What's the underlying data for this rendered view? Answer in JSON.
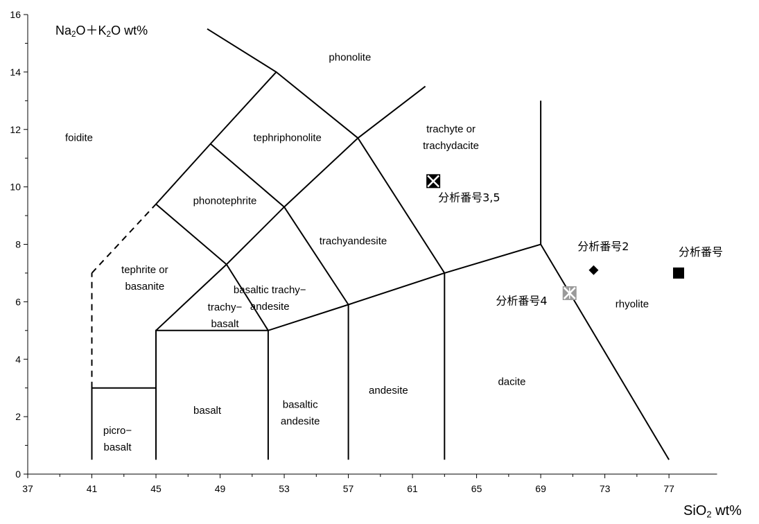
{
  "chart_data": {
    "type": "scatter",
    "title": "",
    "xaxis": {
      "label_main": "SiO",
      "label_sub": "2",
      "label_tail": " wt%",
      "range": [
        37,
        80
      ],
      "ticks": [
        37,
        41,
        45,
        49,
        53,
        57,
        61,
        65,
        69,
        73,
        77
      ]
    },
    "yaxis": {
      "label_parts": [
        "Na",
        "2",
        "O＋K",
        "2",
        "O wt%"
      ],
      "range": [
        0,
        16
      ],
      "ticks": [
        0,
        2,
        4,
        6,
        8,
        10,
        12,
        14,
        16
      ]
    },
    "grid": false,
    "boundaries": [
      {
        "points": [
          [
            41,
            0.5
          ],
          [
            41,
            3
          ],
          [
            45,
            3
          ],
          [
            45,
            5
          ],
          [
            52,
            5
          ],
          [
            57,
            5.9
          ],
          [
            63,
            7
          ],
          [
            69,
            8
          ],
          [
            77,
            0.5
          ]
        ]
      },
      {
        "points": [
          [
            45,
            0.5
          ],
          [
            45,
            3
          ]
        ]
      },
      {
        "points": [
          [
            52,
            0.5
          ],
          [
            52,
            5
          ]
        ]
      },
      {
        "points": [
          [
            57,
            0.5
          ],
          [
            57,
            5.9
          ]
        ]
      },
      {
        "points": [
          [
            63,
            0.5
          ],
          [
            63,
            7
          ]
        ]
      },
      {
        "points": [
          [
            69,
            8
          ],
          [
            69,
            13
          ]
        ]
      },
      {
        "points": [
          [
            45,
            5
          ],
          [
            49.4,
            7.3
          ],
          [
            53,
            9.3
          ],
          [
            57.6,
            11.7
          ],
          [
            61.8,
            13.5
          ]
        ]
      },
      {
        "points": [
          [
            52,
            5
          ],
          [
            49.4,
            7.3
          ],
          [
            45,
            9.4
          ],
          [
            48.4,
            11.5
          ],
          [
            52.5,
            14
          ],
          [
            48.2,
            15.5
          ]
        ]
      },
      {
        "points": [
          [
            53,
            9.3
          ],
          [
            48.4,
            11.5
          ]
        ]
      },
      {
        "points": [
          [
            57.6,
            11.7
          ],
          [
            52.5,
            14
          ]
        ]
      },
      {
        "points": [
          [
            53,
            9.3
          ],
          [
            57,
            5.9
          ]
        ]
      },
      {
        "points": [
          [
            57.6,
            11.7
          ],
          [
            63,
            7
          ]
        ]
      },
      {
        "points": [
          [
            41,
            7
          ],
          [
            45,
            9.4
          ]
        ],
        "dashed": true
      },
      {
        "points": [
          [
            41,
            3
          ],
          [
            41,
            7
          ]
        ],
        "dashed": true
      }
    ],
    "regions": [
      {
        "name": "phonolite",
        "lines": [
          "phonolite"
        ],
        "x": 57.1,
        "y": 14.4
      },
      {
        "name": "foidite",
        "lines": [
          "foidite"
        ],
        "x": 40.2,
        "y": 11.6
      },
      {
        "name": "tephriphonolite",
        "lines": [
          "tephriphonolite"
        ],
        "x": 53.2,
        "y": 11.6
      },
      {
        "name": "trachyte-or-trachydacite",
        "lines": [
          "trachyte or",
          "trachydacite"
        ],
        "x": 63.4,
        "y": 11.9
      },
      {
        "name": "phonotephrite",
        "lines": [
          "phonotephrite"
        ],
        "x": 49.3,
        "y": 9.4
      },
      {
        "name": "trachyandesite",
        "lines": [
          "trachyandesite"
        ],
        "x": 57.3,
        "y": 8.0
      },
      {
        "name": "tephrite-or-basanite",
        "lines": [
          "tephrite or",
          "basanite"
        ],
        "x": 44.3,
        "y": 7.0
      },
      {
        "name": "basaltic-trachyandesite",
        "lines": [
          "basaltic trachy−",
          "andesite"
        ],
        "x": 52.1,
        "y": 6.3
      },
      {
        "name": "trachybasalt",
        "lines": [
          "trachy−",
          "basalt"
        ],
        "x": 49.3,
        "y": 5.7
      },
      {
        "name": "picrobasalt",
        "lines": [
          "picro−",
          "basalt"
        ],
        "x": 42.6,
        "y": 1.4
      },
      {
        "name": "basalt",
        "lines": [
          "basalt"
        ],
        "x": 48.2,
        "y": 2.1
      },
      {
        "name": "basaltic-andesite",
        "lines": [
          "basaltic",
          "andesite"
        ],
        "x": 54.0,
        "y": 2.3
      },
      {
        "name": "andesite",
        "lines": [
          "andesite"
        ],
        "x": 59.5,
        "y": 2.8
      },
      {
        "name": "dacite",
        "lines": [
          "dacite"
        ],
        "x": 67.2,
        "y": 3.1
      },
      {
        "name": "rhyolite",
        "lines": [
          "rhyolite"
        ],
        "x": 74.7,
        "y": 5.8
      }
    ],
    "series": [
      {
        "name": "分析番号3,5",
        "marker": "boxed-x-black",
        "x": 62.3,
        "y": 10.2,
        "label_x": 62.6,
        "label_y": 9.5
      },
      {
        "name": "分析番号4",
        "marker": "boxed-x-gray",
        "x": 70.8,
        "y": 6.3,
        "label_x": 66.2,
        "label_y": 5.9
      },
      {
        "name": "分析番号2",
        "marker": "diamond-black",
        "x": 72.3,
        "y": 7.1,
        "label_x": 71.3,
        "label_y": 7.8
      },
      {
        "name": "分析番号",
        "marker": "square-black",
        "x": 77.6,
        "y": 7.0,
        "label_x": 77.6,
        "label_y": 7.6
      }
    ]
  }
}
